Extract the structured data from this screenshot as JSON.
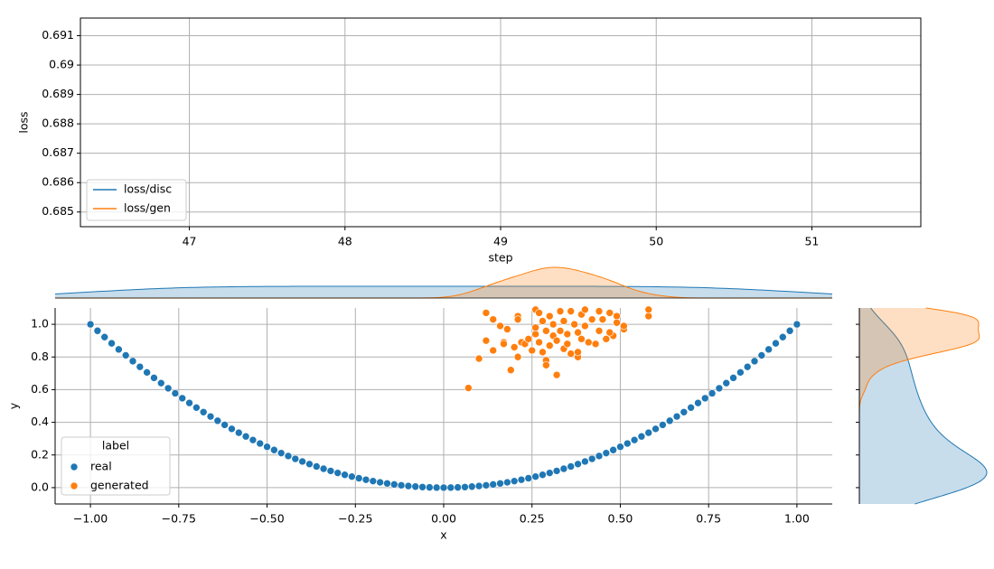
{
  "chart_data": [
    {
      "type": "line",
      "xlabel": "step",
      "ylabel": "loss",
      "x": [],
      "series": [
        {
          "name": "loss/disc",
          "color": "#1f77b4",
          "values": []
        },
        {
          "name": "loss/gen",
          "color": "#ff7f0e",
          "values": []
        }
      ],
      "xlim": [
        46.3,
        51.7
      ],
      "xticks": [
        47,
        48,
        49,
        50,
        51
      ],
      "ylim": [
        0.6845,
        0.6916
      ],
      "yticks": [
        0.685,
        0.686,
        0.687,
        0.688,
        0.689,
        0.69,
        0.691
      ],
      "grid": true,
      "legend": "lower left"
    },
    {
      "type": "scatter",
      "xlabel": "x",
      "ylabel": "y",
      "legend_title": "label",
      "series": [
        {
          "name": "real",
          "color": "#1f77b4",
          "x": [
            -1,
            -0.98,
            -0.96,
            -0.94,
            -0.92,
            -0.9,
            -0.88,
            -0.86,
            -0.84,
            -0.82,
            -0.8,
            -0.78,
            -0.76,
            -0.74,
            -0.72,
            -0.7,
            -0.68,
            -0.66,
            -0.64,
            -0.62,
            -0.6,
            -0.58,
            -0.56,
            -0.54,
            -0.52,
            -0.5,
            -0.48,
            -0.46,
            -0.44,
            -0.42,
            -0.4,
            -0.38,
            -0.36,
            -0.34,
            -0.32,
            -0.3,
            -0.28,
            -0.26,
            -0.24,
            -0.22,
            -0.2,
            -0.18,
            -0.16,
            -0.14,
            -0.12,
            -0.1,
            -0.08,
            -0.06,
            -0.04,
            -0.02,
            0,
            0.02,
            0.04,
            0.06,
            0.08,
            0.1,
            0.12,
            0.14,
            0.16,
            0.18,
            0.2,
            0.22,
            0.24,
            0.26,
            0.28,
            0.3,
            0.32,
            0.34,
            0.36,
            0.38,
            0.4,
            0.42,
            0.44,
            0.46,
            0.48,
            0.5,
            0.52,
            0.54,
            0.56,
            0.58,
            0.6,
            0.62,
            0.64,
            0.66,
            0.68,
            0.7,
            0.72,
            0.74,
            0.76,
            0.78,
            0.8,
            0.82,
            0.84,
            0.86,
            0.88,
            0.9,
            0.92,
            0.94,
            0.96,
            0.98,
            1
          ],
          "values": [
            1,
            0.9604,
            0.9216,
            0.8836,
            0.8464,
            0.81,
            0.7744,
            0.7396,
            0.7056,
            0.6724,
            0.64,
            0.6084,
            0.5776,
            0.5476,
            0.5184,
            0.49,
            0.4624,
            0.4356,
            0.4096,
            0.3844,
            0.36,
            0.3364,
            0.3136,
            0.2916,
            0.2704,
            0.25,
            0.2304,
            0.2116,
            0.1936,
            0.1764,
            0.16,
            0.1444,
            0.1296,
            0.1156,
            0.1024,
            0.09,
            0.0784,
            0.0676,
            0.0576,
            0.0484,
            0.04,
            0.0324,
            0.0256,
            0.0196,
            0.0144,
            0.01,
            0.0064,
            0.0036,
            0.0016,
            0.0004,
            0,
            0.0004,
            0.0016,
            0.0036,
            0.0064,
            0.01,
            0.0144,
            0.0196,
            0.0256,
            0.0324,
            0.04,
            0.0484,
            0.0576,
            0.0676,
            0.0784,
            0.09,
            0.1024,
            0.1156,
            0.1296,
            0.1444,
            0.16,
            0.1764,
            0.1936,
            0.2116,
            0.2304,
            0.25,
            0.2704,
            0.2916,
            0.3136,
            0.3364,
            0.36,
            0.3844,
            0.4096,
            0.4356,
            0.4624,
            0.49,
            0.5184,
            0.5476,
            0.5776,
            0.6084,
            0.64,
            0.6724,
            0.7056,
            0.7396,
            0.7744,
            0.81,
            0.8464,
            0.8836,
            0.9216,
            0.9604,
            1
          ]
        },
        {
          "name": "generated",
          "color": "#ff7f0e",
          "x": [
            0.07,
            0.1,
            0.12,
            0.12,
            0.14,
            0.14,
            0.16,
            0.17,
            0.17,
            0.18,
            0.19,
            0.2,
            0.21,
            0.21,
            0.21,
            0.22,
            0.23,
            0.24,
            0.25,
            0.26,
            0.26,
            0.26,
            0.27,
            0.27,
            0.28,
            0.28,
            0.29,
            0.29,
            0.29,
            0.3,
            0.3,
            0.31,
            0.31,
            0.32,
            0.32,
            0.33,
            0.33,
            0.34,
            0.34,
            0.35,
            0.35,
            0.36,
            0.36,
            0.37,
            0.38,
            0.38,
            0.38,
            0.39,
            0.39,
            0.4,
            0.4,
            0.41,
            0.42,
            0.43,
            0.44,
            0.44,
            0.45,
            0.46,
            0.47,
            0.48,
            0.49,
            0.51,
            0.51,
            0.58,
            0.58,
            0.49,
            0.47
          ],
          "values": [
            0.61,
            0.79,
            0.9,
            1.07,
            0.84,
            1.03,
            0.99,
            0.89,
            0.88,
            0.97,
            0.72,
            0.86,
            0.8,
            1.05,
            1.03,
            0.89,
            0.88,
            0.91,
            0.84,
            0.94,
            1.09,
            0.98,
            0.89,
            1.07,
            1.02,
            0.83,
            0.96,
            0.78,
            0.75,
            1.05,
            0.87,
            0.93,
            1,
            0.69,
            0.9,
            0.96,
            1.08,
            0.85,
            1.02,
            0.88,
            0.94,
            0.82,
            1.08,
            1,
            0.95,
            0.8,
            0.83,
            0.91,
            1.06,
            0.99,
            1.09,
            0.89,
            1.03,
            0.88,
            0.96,
            1.08,
            1.03,
            0.91,
            1.07,
            0.93,
            1.05,
            0.97,
            0.99,
            1.05,
            1.09,
            1.01,
            0.95
          ]
        }
      ],
      "xlim": [
        -1.1,
        1.1
      ],
      "xticks": [
        {
          "value": -1,
          "label": "−1.00"
        },
        {
          "value": -0.75,
          "label": "−0.75"
        },
        {
          "value": -0.5,
          "label": "−0.50"
        },
        {
          "value": -0.25,
          "label": "−0.25"
        },
        {
          "value": 0,
          "label": "0.00"
        },
        0.25,
        {
          "value": 0.5,
          "label": "0.50"
        },
        0.75,
        {
          "value": 1,
          "label": "1.00"
        }
      ],
      "ylim": [
        -0.1,
        1.1
      ],
      "yticks": [
        {
          "value": 0,
          "label": "0.0"
        },
        0.2,
        0.4,
        0.6,
        0.8,
        {
          "value": 1,
          "label": "1.0"
        }
      ],
      "grid": true,
      "legend": "lower left",
      "marginals": "kde"
    }
  ]
}
